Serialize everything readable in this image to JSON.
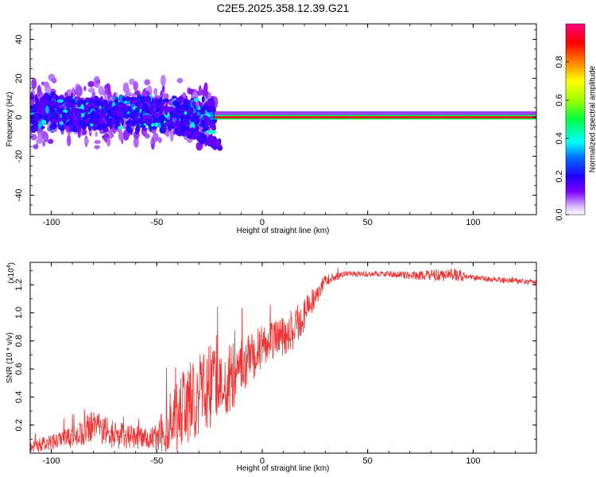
{
  "chart_data": [
    {
      "type": "heatmap",
      "title": "C2E5.2025.358.12.39.G21",
      "xlabel": "Height of straight line (km)",
      "ylabel": "Frequency (Hz)",
      "xlim": [
        -110,
        130
      ],
      "ylim": [
        -50,
        48
      ],
      "x_ticks": [
        -100,
        -50,
        0,
        50,
        100
      ],
      "x_tick_labels": [
        "-100",
        "-50",
        "0",
        "50",
        "100"
      ],
      "y_ticks": [
        -40,
        -20,
        0,
        20,
        40
      ],
      "y_tick_labels": [
        "-40",
        "-20",
        "0",
        "20",
        "40"
      ],
      "colorbar": {
        "label": "Normalized spectral amplitude",
        "range": [
          0,
          1
        ],
        "ticks": [
          0,
          0.2,
          0.4,
          0.6,
          0.8
        ],
        "tick_labels": [
          "0.0",
          "0.2",
          "0.4",
          "0.6",
          "0.8"
        ]
      },
      "features": [
        {
          "name": "scattered-turbulent-signal",
          "x_range": [
            -110,
            -22
          ],
          "center_frequency_hz": 3,
          "spread_hz": [
            -15,
            25
          ],
          "amplitude": 0.25
        },
        {
          "name": "secondary-branch",
          "x_range": [
            -40,
            -20
          ],
          "frequency_hz": [
            -6,
            -14
          ],
          "amplitude": 0.2
        },
        {
          "name": "steady-carrier",
          "x_range": [
            -22,
            130
          ],
          "frequency_hz": 0,
          "amplitude": 0.95
        }
      ],
      "colors": {
        "low": "#c9a8ff",
        "mid": "#00ffff",
        "high": "#ff0000"
      }
    },
    {
      "type": "line",
      "title": "",
      "xlabel": "Height of straight line (km)",
      "ylabel": "SNR (10 * v/v)",
      "y_scale_label": "(x10",
      "y_scale_exp": "4",
      "xlim": [
        -110,
        130
      ],
      "ylim": [
        0,
        1.36
      ],
      "x_ticks": [
        -100,
        -50,
        0,
        50,
        100
      ],
      "x_tick_labels": [
        "-100",
        "-50",
        "0",
        "50",
        "100"
      ],
      "y_ticks": [
        0.2,
        0.4,
        0.6,
        0.8,
        1.0,
        1.2
      ],
      "y_tick_labels": [
        "0.2",
        "0.4",
        "0.6",
        "0.8",
        "1.0",
        "1.2"
      ],
      "series": [
        {
          "name": "SNR",
          "color": "#ee3333",
          "x": [
            -110,
            -100,
            -90,
            -80,
            -70,
            -60,
            -50,
            -45,
            -40,
            -35,
            -30,
            -25,
            -20,
            -15,
            -10,
            -5,
            0,
            5,
            10,
            15,
            20,
            25,
            30,
            40,
            50,
            60,
            70,
            80,
            90,
            100,
            110,
            120,
            130
          ],
          "y": [
            0.05,
            0.08,
            0.12,
            0.2,
            0.14,
            0.12,
            0.12,
            0.22,
            0.32,
            0.38,
            0.45,
            0.5,
            0.6,
            0.55,
            0.65,
            0.7,
            0.78,
            0.82,
            0.85,
            0.9,
            1.0,
            1.12,
            1.24,
            1.28,
            1.28,
            1.28,
            1.27,
            1.27,
            1.28,
            1.25,
            1.24,
            1.23,
            1.22
          ],
          "noise": [
            0.04,
            0.06,
            0.08,
            0.12,
            0.1,
            0.08,
            0.1,
            0.2,
            0.28,
            0.3,
            0.3,
            0.32,
            0.3,
            0.25,
            0.2,
            0.18,
            0.16,
            0.15,
            0.15,
            0.15,
            0.12,
            0.08,
            0.04,
            0.02,
            0.02,
            0.02,
            0.03,
            0.04,
            0.05,
            0.02,
            0.02,
            0.02,
            0.02
          ]
        }
      ]
    }
  ]
}
